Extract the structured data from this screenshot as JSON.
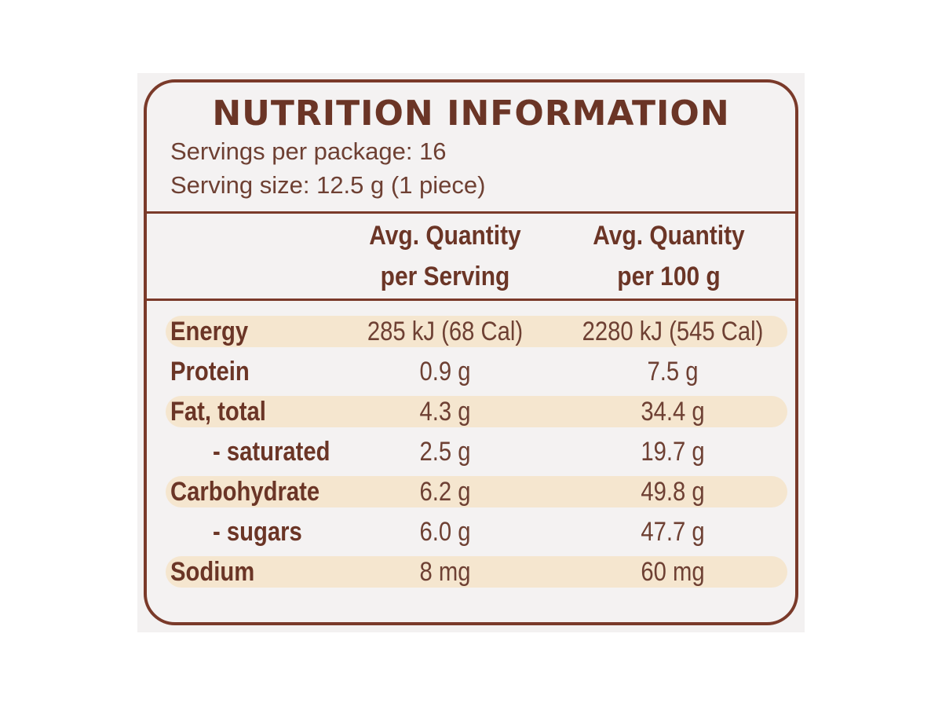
{
  "panel": {
    "title": "NUTRITION INFORMATION",
    "servings_line": "Servings per package: 16",
    "size_line": "Serving size: 12.5 g (1 piece)"
  },
  "columns": {
    "per_serving": "Avg. Quantity\nper Serving",
    "per_100g": "Avg. Quantity\nper 100 g"
  },
  "rows": [
    {
      "label": "Energy",
      "per_serving": "285 kJ (68 Cal)",
      "per_100g": "2280 kJ (545 Cal)",
      "shaded": true,
      "sub": false
    },
    {
      "label": "Protein",
      "per_serving": "0.9 g",
      "per_100g": "7.5 g",
      "shaded": false,
      "sub": false
    },
    {
      "label": "Fat, total",
      "per_serving": "4.3 g",
      "per_100g": "34.4 g",
      "shaded": true,
      "sub": false
    },
    {
      "label": "- saturated",
      "per_serving": "2.5 g",
      "per_100g": "19.7 g",
      "shaded": false,
      "sub": true
    },
    {
      "label": "Carbohydrate",
      "per_serving": "6.2 g",
      "per_100g": "49.8 g",
      "shaded": true,
      "sub": false
    },
    {
      "label": "- sugars",
      "per_serving": "6.0 g",
      "per_100g": "47.7 g",
      "shaded": false,
      "sub": true
    },
    {
      "label": "Sodium",
      "per_serving": "8 mg",
      "per_100g": "60 mg",
      "shaded": true,
      "sub": false
    }
  ],
  "colors": {
    "border": "#7a3a2a",
    "heading_text": "#6b3526",
    "body_text": "#6e4033",
    "band": "#f5e6cf",
    "panel_bg": "#f4f2f2"
  }
}
